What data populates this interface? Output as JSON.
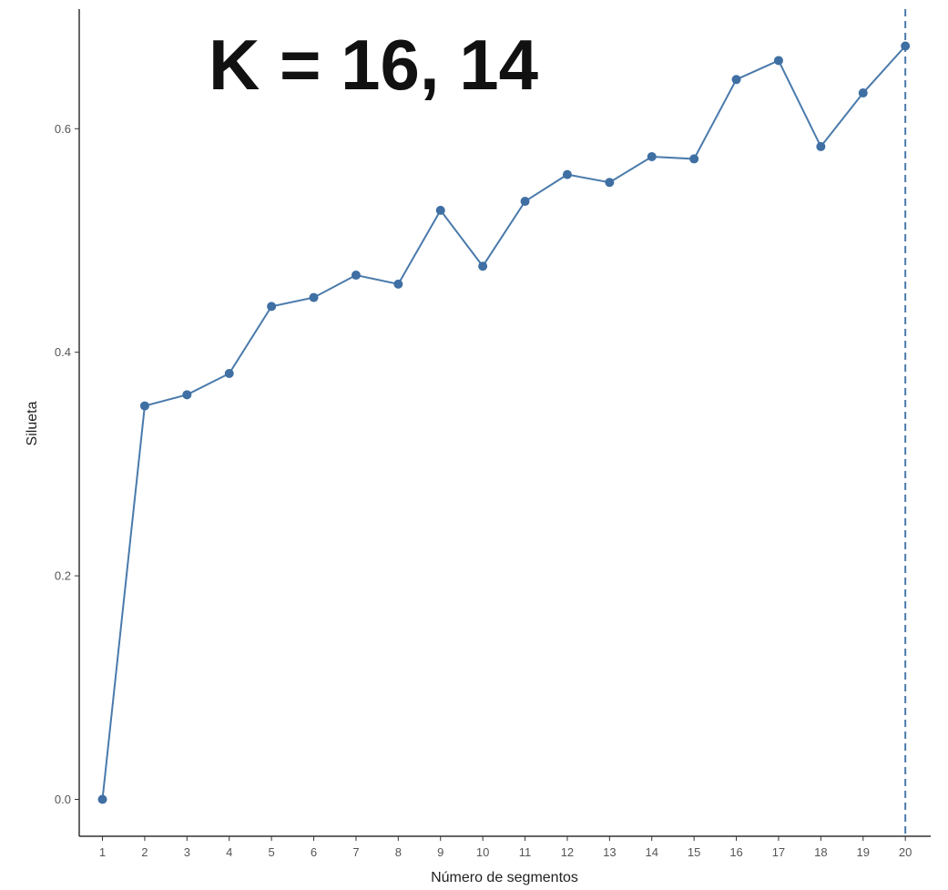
{
  "chart_data": {
    "type": "line",
    "title": "K = 16, 14",
    "xlabel": "Número de segmentos",
    "ylabel": "Silueta",
    "x": [
      1,
      2,
      3,
      4,
      5,
      6,
      7,
      8,
      9,
      10,
      11,
      12,
      13,
      14,
      15,
      16,
      17,
      18,
      19,
      20
    ],
    "x_tick_labels": [
      "1",
      "2",
      "3",
      "4",
      "5",
      "6",
      "7",
      "8",
      "9",
      "10",
      "11",
      "12",
      "13",
      "14",
      "15",
      "16",
      "17",
      "18",
      "19",
      "20"
    ],
    "series": [
      {
        "values": [
          0.0,
          0.352,
          0.362,
          0.381,
          0.441,
          0.449,
          0.469,
          0.461,
          0.527,
          0.477,
          0.535,
          0.559,
          0.552,
          0.575,
          0.573,
          0.644,
          0.661,
          0.584,
          0.632,
          0.674
        ]
      }
    ],
    "y_ticks": [
      0.0,
      0.2,
      0.4,
      0.6
    ],
    "y_tick_labels": [
      "0.0",
      "0.2",
      "0.4",
      "0.6"
    ],
    "xlim": [
      0.45,
      20.6
    ],
    "ylim": [
      -0.033,
      0.707
    ],
    "optimal_k_marker": 20,
    "grid": false,
    "colors": {
      "line": "#4a7aab",
      "point": "#3f6fa3",
      "vline": "#4a7aab",
      "axis": "#333333"
    }
  }
}
